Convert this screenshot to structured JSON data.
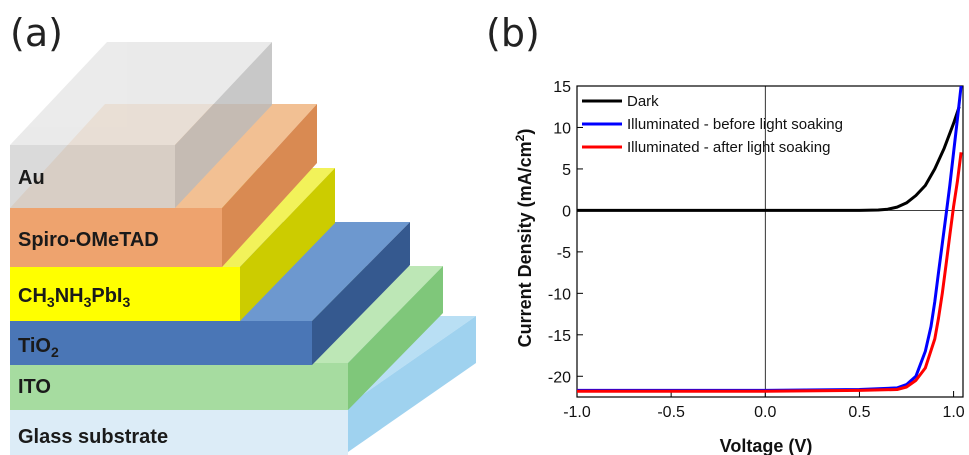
{
  "panel_a": {
    "label": "(a)",
    "layers": [
      {
        "key": "au",
        "name": "Au",
        "front": "#d2d2d2",
        "top": "#e6e6e6",
        "side": "#bbbbbb"
      },
      {
        "key": "spiro",
        "name": "Spiro-OMeTAD",
        "front": "#eea36e",
        "top": "#f2c093",
        "side": "#d98a52"
      },
      {
        "key": "mapi",
        "name": "CH3NH3PbI3",
        "front": "#ffff00",
        "top": "#f2f25a",
        "side": "#cccc00"
      },
      {
        "key": "tio2",
        "name": "TiO2",
        "front": "#4a76b6",
        "top": "#6d98cf",
        "side": "#35598f"
      },
      {
        "key": "ito",
        "name": "ITO",
        "front": "#a6dca0",
        "top": "#bde7b6",
        "side": "#7fc77a"
      },
      {
        "key": "glass",
        "name": "Glass substrate",
        "front": "#dcecf7",
        "top": "#b9dff4",
        "side": "#9fd2ef"
      }
    ],
    "label_parts": {
      "mapi": [
        "CH",
        "3",
        "NH",
        "3",
        "PbI",
        "3"
      ],
      "tio2": [
        "TiO",
        "2"
      ]
    }
  },
  "panel_b": {
    "label": "(b)",
    "chart_data": {
      "type": "line",
      "xlabel": "Voltage (V)",
      "ylabel_parts": [
        "Current Density (mA/cm",
        "2",
        ")"
      ],
      "xlim": [
        -1.0,
        1.05
      ],
      "ylim": [
        -22.5,
        15
      ],
      "xticks": [
        "-1.0",
        "-0.5",
        "0.0",
        "0.5",
        "1.0"
      ],
      "xtick_values": [
        -1.0,
        -0.5,
        0.0,
        0.5,
        1.0
      ],
      "yticks": [
        "15",
        "10",
        "5",
        "0",
        "-5",
        "-10",
        "-15",
        "-20"
      ],
      "ytick_values": [
        15,
        10,
        5,
        0,
        -5,
        -10,
        -15,
        -20
      ],
      "legend_position": "top-left",
      "series": [
        {
          "name": "Dark",
          "color": "#000000",
          "x": [
            -1.0,
            -0.5,
            0.0,
            0.5,
            0.6,
            0.65,
            0.7,
            0.75,
            0.8,
            0.85,
            0.9,
            0.95,
            1.0,
            1.03
          ],
          "y": [
            0,
            0,
            0,
            0,
            0.05,
            0.15,
            0.4,
            0.9,
            1.8,
            3.0,
            5.0,
            7.5,
            10.5,
            12.5
          ]
        },
        {
          "name": "Illuminated - before light soaking",
          "color": "#0000ff",
          "x": [
            -1.0,
            -0.5,
            0.0,
            0.5,
            0.7,
            0.75,
            0.8,
            0.85,
            0.88,
            0.9,
            0.92,
            0.94,
            0.96,
            0.98,
            1.0,
            1.02,
            1.04
          ],
          "y": [
            -21.7,
            -21.7,
            -21.7,
            -21.6,
            -21.4,
            -21.0,
            -20.0,
            -17.0,
            -14.0,
            -11.0,
            -7.5,
            -4.0,
            -0.5,
            3.0,
            7.0,
            11.0,
            15.0
          ]
        },
        {
          "name": "Illuminated - after light soaking",
          "color": "#ff0000",
          "x": [
            -1.0,
            -0.5,
            0.0,
            0.5,
            0.7,
            0.75,
            0.8,
            0.85,
            0.9,
            0.92,
            0.94,
            0.96,
            0.98,
            1.0,
            1.02,
            1.04
          ],
          "y": [
            -21.8,
            -21.8,
            -21.8,
            -21.7,
            -21.6,
            -21.3,
            -20.5,
            -19.0,
            -15.5,
            -13.0,
            -10.0,
            -6.5,
            -3.0,
            0.5,
            3.5,
            7.0
          ]
        }
      ]
    }
  }
}
